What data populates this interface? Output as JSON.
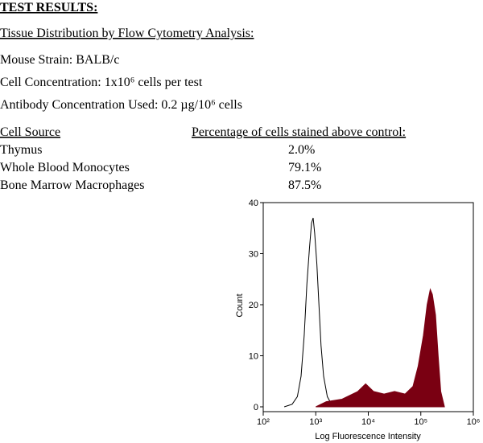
{
  "header": {
    "title": "TEST RESULTS:",
    "subtitle": "Tissue Distribution by Flow Cytometry Analysis:"
  },
  "details": [
    "Mouse Strain:  BALB/c",
    "Cell Concentration:  1x10⁶ cells per test",
    "Antibody Concentration Used:  0.2 µg/10⁶ cells"
  ],
  "table": {
    "columns": [
      "Cell Source",
      "Percentage of cells stained above control:"
    ],
    "rows": [
      [
        "Thymus",
        "2.0%"
      ],
      [
        "Whole Blood Monocytes",
        "79.1%"
      ],
      [
        "Bone Marrow Macrophages",
        "87.5%"
      ]
    ]
  },
  "chart_data": {
    "type": "histogram-overlay",
    "x_label": "Log Fluorescence Intensity",
    "y_label": "Count",
    "xscale": "log",
    "xlim": [
      100,
      1000000
    ],
    "xticks": [
      {
        "value": 100,
        "label": "10²"
      },
      {
        "value": 1000,
        "label": "10³"
      },
      {
        "value": 10000,
        "label": "10⁴"
      },
      {
        "value": 100000,
        "label": "10⁵"
      },
      {
        "value": 1000000,
        "label": "10⁶"
      }
    ],
    "ylim": [
      0,
      40
    ],
    "yticks": [
      0,
      10,
      20,
      30,
      40
    ],
    "series": [
      {
        "color": "#000000",
        "filled": false,
        "x": [
          251,
          355,
          447,
          525,
          603,
          676,
          759,
          832,
          891,
          955,
          1047,
          1148,
          1259,
          1413,
          1660,
          1995,
          2512
        ],
        "values": [
          0,
          0.5,
          2,
          6,
          14,
          24,
          31,
          36,
          37,
          34,
          28,
          20,
          12,
          6,
          2,
          0.5,
          0
        ]
      },
      {
        "color": "#7a0012",
        "filled": true,
        "x": [
          1000,
          1585,
          3162,
          6310,
          8913,
          12589,
          19953,
          31623,
          50119,
          70795,
          89125,
          112202,
          131826,
          151356,
          165959,
          190546,
          213796,
          239883,
          281838
        ],
        "values": [
          0,
          1,
          1.5,
          3,
          4.5,
          3,
          2.5,
          3,
          2.5,
          4,
          8,
          14,
          20,
          23,
          22,
          18,
          10,
          3,
          0
        ]
      }
    ]
  }
}
